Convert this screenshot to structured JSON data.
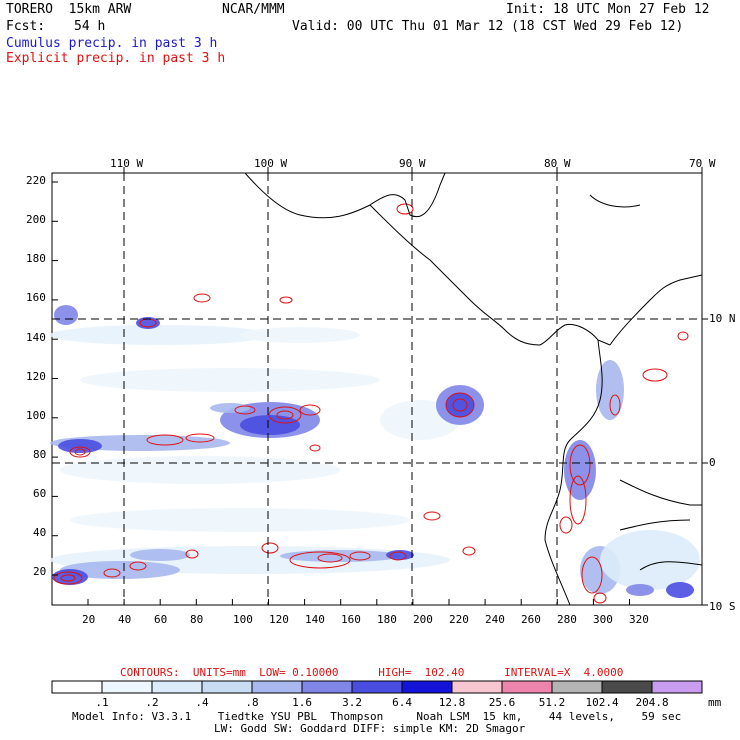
{
  "header": {
    "model": "TORERO  15km ARW",
    "org": "NCAR/MMM",
    "init": "Init: 18 UTC Mon 27 Feb 12",
    "fcst_label": "Fcst:",
    "fcst_value": "54 h",
    "valid": "Valid: 00 UTC Thu 01 Mar 12 (18 CST Wed 29 Feb 12)",
    "cumulus": "Cumulus precip. in past 3 h",
    "explicit": "Explicit precip. in past 3 h"
  },
  "map": {
    "lon_labels": [
      "110 W",
      "100 W",
      "90 W",
      "80 W",
      "70 W"
    ],
    "lat_labels": [
      "10 N",
      "0",
      "10 S"
    ],
    "y_ticks": [
      "220",
      "200",
      "180",
      "160",
      "140",
      "120",
      "100",
      "80",
      "60",
      "40",
      "20"
    ],
    "x_ticks": [
      "20",
      "40",
      "60",
      "80",
      "100",
      "120",
      "140",
      "160",
      "180",
      "200",
      "220",
      "240",
      "260",
      "280",
      "300",
      "320"
    ],
    "colors": {
      "cumulus": "#1a1ad0",
      "explicit": "#e01010"
    }
  },
  "contours_line": {
    "label": "CONTOURS:  UNITS=mm  LOW= 0.10000      HIGH=  102.40      INTERVAL=X  4.0000"
  },
  "colorbar": {
    "unit": "mm",
    "labels": [
      ".1",
      ".2",
      ".4",
      ".8",
      "1.6",
      "3.2",
      "6.4",
      "12.8",
      "25.6",
      "51.2",
      "102.4",
      "204.8"
    ],
    "colors": [
      "#ffffff",
      "#eef6ff",
      "#dcecfa",
      "#c8dcf4",
      "#a9b8ee",
      "#7f86e8",
      "#4a4ee0",
      "#1414d8",
      "#f7c6d0",
      "#ec84ac",
      "#b4b4b4",
      "#4a4a4a",
      "#c99cf0"
    ]
  },
  "footer": {
    "line1": "Model Info: V3.3.1    Tiedtke YSU PBL  Thompson     Noah LSM  15 km,    44 levels,    59 sec",
    "line2": "LW: Godd SW: Goddard DIFF: simple KM: 2D Smagor"
  }
}
